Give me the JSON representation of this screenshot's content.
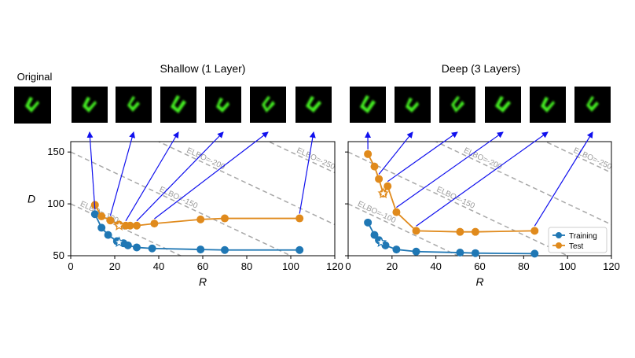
{
  "original_label": "Original",
  "colors": {
    "training": "#1f77b4",
    "test": "#e08a1c",
    "arrow": "#1010ee",
    "elbo_line": "#a8a8a8",
    "digit": "#44ee22",
    "thumb_bg": "#000000"
  },
  "chart_data": [
    {
      "type": "line",
      "title": "Shallow (1 Layer)",
      "xlabel": "R",
      "ylabel": "D",
      "xlim": [
        0,
        120
      ],
      "ylim": [
        50,
        160
      ],
      "xticks": [
        "0",
        "20",
        "40",
        "60",
        "80",
        "100",
        "120"
      ],
      "yticks": [
        "50",
        "100",
        "150"
      ],
      "legend": null,
      "series": [
        {
          "name": "Training",
          "x": [
            11,
            14,
            17,
            21,
            24,
            26,
            30,
            37,
            59,
            70,
            104
          ],
          "y": [
            90,
            77,
            70,
            64,
            62,
            60,
            58,
            57,
            56,
            55.5,
            55.5
          ]
        },
        {
          "name": "Test",
          "x": [
            11,
            14,
            18,
            22,
            25,
            27,
            30,
            38,
            59,
            70,
            104
          ],
          "y": [
            99,
            88,
            84,
            80,
            79,
            79,
            79,
            81,
            85,
            86,
            86
          ]
        }
      ],
      "selected_points": [
        {
          "series": "Training",
          "x": 11,
          "y": 90
        },
        {
          "series": "Test",
          "x": 18,
          "y": 84
        },
        {
          "series": "Test",
          "x": 25,
          "y": 79
        },
        {
          "series": "Test",
          "x": 30,
          "y": 79
        },
        {
          "series": "Test",
          "x": 38,
          "y": 81
        },
        {
          "series": "Test",
          "x": 104,
          "y": 86
        }
      ],
      "star_markers": [
        {
          "series": "Training",
          "x": 22,
          "y": 63
        },
        {
          "series": "Test",
          "x": 22,
          "y": 79
        }
      ],
      "elbo_lines": [
        {
          "value": 100,
          "label": "ELBO=-100"
        },
        {
          "value": 150,
          "label": "ELBO=-150"
        },
        {
          "value": 200,
          "label": "ELBO=-200"
        },
        {
          "value": 250,
          "label": "ELBO=-250"
        }
      ]
    },
    {
      "type": "line",
      "title": "Deep (3 Layers)",
      "xlabel": "R",
      "ylabel": "",
      "xlim": [
        0,
        120
      ],
      "ylim": [
        50,
        160
      ],
      "xticks": [
        "0",
        "20",
        "40",
        "60",
        "80",
        "100",
        "120"
      ],
      "yticks": [],
      "legend": "lower right",
      "series": [
        {
          "name": "Training",
          "x": [
            9,
            12,
            14,
            17,
            22,
            31,
            51,
            58,
            85
          ],
          "y": [
            82,
            70,
            65,
            60,
            56,
            54,
            53,
            52.5,
            52
          ]
        },
        {
          "name": "Test",
          "x": [
            9,
            12,
            14,
            16,
            18,
            22,
            31,
            51,
            58,
            85
          ],
          "y": [
            148,
            136,
            124,
            110,
            117,
            92,
            74,
            73,
            73,
            74
          ]
        }
      ],
      "selected_points": [
        {
          "series": "Test",
          "x": 9,
          "y": 148
        },
        {
          "series": "Test",
          "x": 14,
          "y": 124
        },
        {
          "series": "Test",
          "x": 18,
          "y": 117
        },
        {
          "series": "Test",
          "x": 22,
          "y": 92
        },
        {
          "series": "Test",
          "x": 31,
          "y": 74
        },
        {
          "series": "Test",
          "x": 85,
          "y": 74
        }
      ],
      "star_markers": [
        {
          "series": "Training",
          "x": 15,
          "y": 63
        },
        {
          "series": "Test",
          "x": 16,
          "y": 110
        }
      ],
      "elbo_lines": [
        {
          "value": 100,
          "label": "ELBO=-100"
        },
        {
          "value": 150,
          "label": "ELBO=-150"
        },
        {
          "value": 200,
          "label": "ELBO=-200"
        },
        {
          "value": 250,
          "label": "ELBO=-250"
        }
      ]
    }
  ]
}
